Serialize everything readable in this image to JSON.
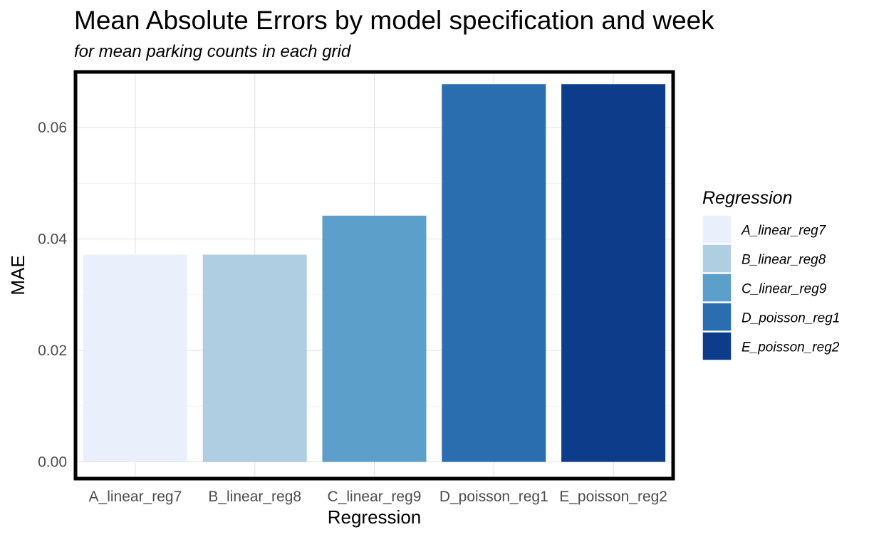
{
  "chart_data": {
    "type": "bar",
    "title": "Mean Absolute Errors by model specification and week",
    "subtitle": "for mean parking counts in each grid",
    "xlabel": "Regression",
    "ylabel": "MAE",
    "categories": [
      "A_linear_reg7",
      "B_linear_reg8",
      "C_linear_reg9",
      "D_poisson_reg1",
      "E_poisson_reg2"
    ],
    "values": [
      0.0372,
      0.0372,
      0.0442,
      0.0678,
      0.0678
    ],
    "colors": [
      "#EAF0FB",
      "#B0CEE2",
      "#5C9FCB",
      "#2A6EB0",
      "#0D3D8A"
    ],
    "ylim": [
      -0.003,
      0.07
    ],
    "yticks": [
      0.0,
      0.02,
      0.04,
      0.06
    ],
    "ytick_labels": [
      "0.00",
      "0.02",
      "0.04",
      "0.06"
    ],
    "grid": true,
    "legend": {
      "title": "Regression",
      "position": "right",
      "entries": [
        "A_linear_reg7",
        "B_linear_reg8",
        "C_linear_reg9",
        "D_poisson_reg1",
        "E_poisson_reg2"
      ]
    }
  }
}
